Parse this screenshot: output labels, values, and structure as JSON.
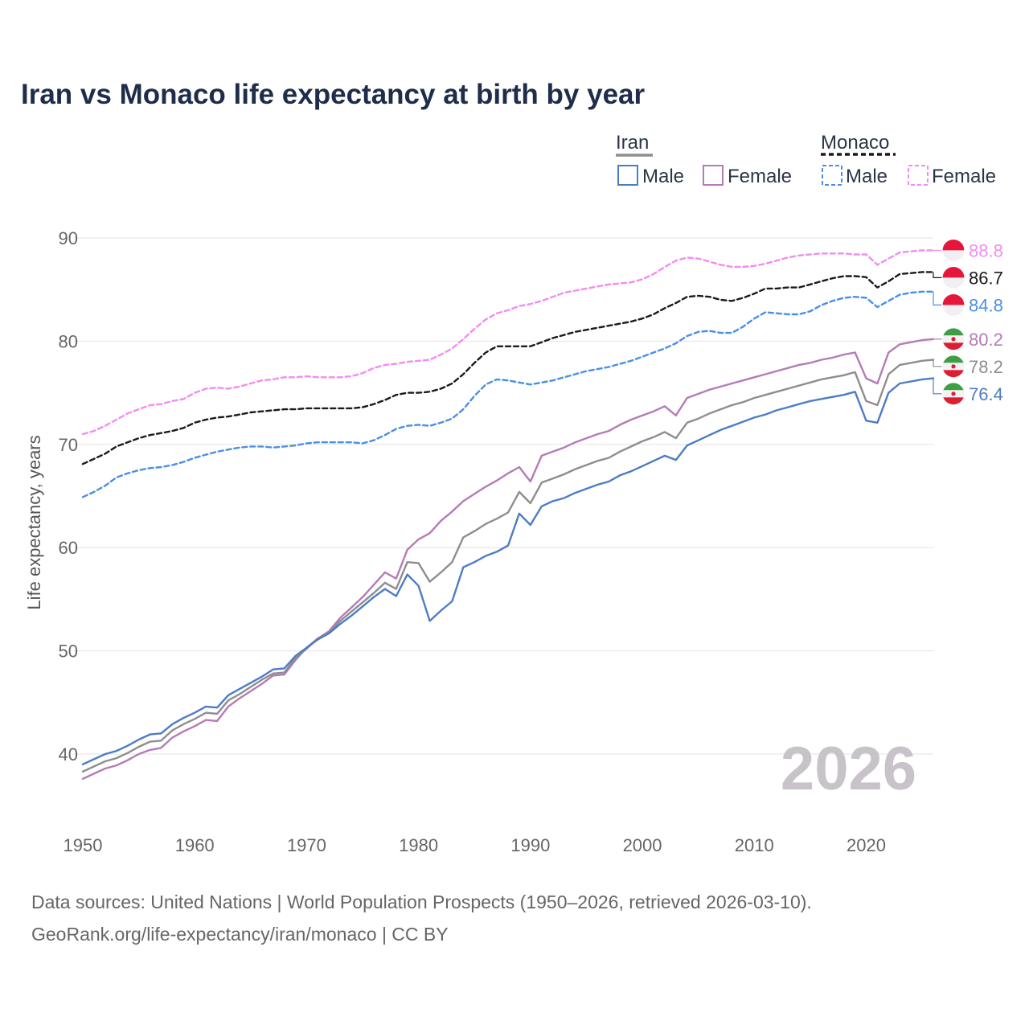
{
  "chart_data": {
    "type": "line",
    "title": "Iran vs Monaco life expectancy at birth by year",
    "xlabel": "",
    "ylabel": "Life expectancy, years",
    "xlim": [
      1950,
      2026
    ],
    "ylim": [
      34,
      93
    ],
    "x_ticks": [
      1950,
      1960,
      1970,
      1980,
      1990,
      2000,
      2010,
      2020
    ],
    "y_ticks": [
      40,
      50,
      60,
      70,
      80,
      90
    ],
    "current_year": "2026",
    "legend": {
      "groups": [
        {
          "name": "Iran",
          "color": "#8e8e8e",
          "dashed": false,
          "items": [
            {
              "label": "Male",
              "color": "#4d7cc7"
            },
            {
              "label": "Female",
              "color": "#b57bb7"
            }
          ]
        },
        {
          "name": "Monaco",
          "color": "#1a1a1a",
          "dashed": true,
          "items": [
            {
              "label": "Male",
              "color": "#4a8fe6"
            },
            {
              "label": "Female",
              "color": "#f18df0"
            }
          ]
        }
      ]
    },
    "x": [
      1950,
      1951,
      1952,
      1953,
      1954,
      1955,
      1956,
      1957,
      1958,
      1959,
      1960,
      1961,
      1962,
      1963,
      1964,
      1965,
      1966,
      1967,
      1968,
      1969,
      1970,
      1971,
      1972,
      1973,
      1974,
      1975,
      1976,
      1977,
      1978,
      1979,
      1980,
      1981,
      1982,
      1983,
      1984,
      1985,
      1986,
      1987,
      1988,
      1989,
      1990,
      1991,
      1992,
      1993,
      1994,
      1995,
      1996,
      1997,
      1998,
      1999,
      2000,
      2001,
      2002,
      2003,
      2004,
      2005,
      2006,
      2007,
      2008,
      2009,
      2010,
      2011,
      2012,
      2013,
      2014,
      2015,
      2016,
      2017,
      2018,
      2019,
      2020,
      2021,
      2022,
      2023,
      2024,
      2025,
      2026
    ],
    "series": [
      {
        "name": "Monaco Female",
        "country": "Monaco",
        "sex": "Female",
        "color": "#f18df0",
        "dashed": true,
        "end_label": "88.8",
        "values": [
          71.0,
          71.3,
          71.8,
          72.4,
          73.0,
          73.4,
          73.8,
          73.9,
          74.2,
          74.4,
          75.0,
          75.4,
          75.5,
          75.4,
          75.6,
          75.9,
          76.2,
          76.3,
          76.5,
          76.5,
          76.6,
          76.5,
          76.5,
          76.5,
          76.6,
          76.9,
          77.4,
          77.7,
          77.8,
          78.0,
          78.1,
          78.2,
          78.7,
          79.3,
          80.2,
          81.2,
          82.1,
          82.7,
          83.0,
          83.4,
          83.6,
          83.9,
          84.3,
          84.7,
          84.9,
          85.1,
          85.3,
          85.5,
          85.6,
          85.7,
          86.0,
          86.5,
          87.2,
          87.8,
          88.1,
          88.0,
          87.7,
          87.4,
          87.2,
          87.2,
          87.3,
          87.5,
          87.8,
          88.1,
          88.3,
          88.4,
          88.5,
          88.5,
          88.5,
          88.4,
          88.4,
          87.4,
          88.0,
          88.6,
          88.7,
          88.8,
          88.8
        ]
      },
      {
        "name": "Monaco",
        "country": "Monaco",
        "sex": "Total",
        "color": "#1a1a1a",
        "dashed": true,
        "end_label": "86.7",
        "values": [
          68.1,
          68.6,
          69.1,
          69.8,
          70.2,
          70.6,
          70.9,
          71.1,
          71.3,
          71.6,
          72.1,
          72.4,
          72.6,
          72.7,
          72.9,
          73.1,
          73.2,
          73.3,
          73.4,
          73.4,
          73.5,
          73.5,
          73.5,
          73.5,
          73.5,
          73.6,
          73.9,
          74.3,
          74.8,
          75.0,
          75.0,
          75.1,
          75.4,
          75.9,
          76.8,
          77.9,
          78.9,
          79.5,
          79.5,
          79.5,
          79.5,
          79.9,
          80.3,
          80.6,
          80.9,
          81.1,
          81.3,
          81.5,
          81.7,
          81.9,
          82.2,
          82.6,
          83.2,
          83.7,
          84.3,
          84.4,
          84.3,
          84.0,
          83.9,
          84.2,
          84.6,
          85.1,
          85.1,
          85.2,
          85.2,
          85.5,
          85.8,
          86.1,
          86.3,
          86.3,
          86.2,
          85.2,
          85.8,
          86.5,
          86.6,
          86.7,
          86.7
        ]
      },
      {
        "name": "Monaco Male",
        "country": "Monaco",
        "sex": "Male",
        "color": "#4a8fe6",
        "dashed": true,
        "end_label": "84.8",
        "values": [
          64.9,
          65.4,
          66.0,
          66.8,
          67.2,
          67.5,
          67.7,
          67.8,
          68.0,
          68.3,
          68.7,
          69.0,
          69.3,
          69.5,
          69.7,
          69.8,
          69.8,
          69.7,
          69.8,
          69.9,
          70.1,
          70.2,
          70.2,
          70.2,
          70.2,
          70.1,
          70.4,
          70.9,
          71.5,
          71.8,
          71.9,
          71.8,
          72.1,
          72.5,
          73.4,
          74.7,
          75.8,
          76.3,
          76.2,
          76.0,
          75.8,
          76.0,
          76.2,
          76.5,
          76.8,
          77.1,
          77.3,
          77.5,
          77.8,
          78.1,
          78.5,
          78.9,
          79.3,
          79.8,
          80.5,
          80.9,
          81.0,
          80.8,
          80.8,
          81.4,
          82.2,
          82.8,
          82.7,
          82.6,
          82.6,
          82.9,
          83.5,
          83.9,
          84.2,
          84.3,
          84.2,
          83.3,
          83.9,
          84.5,
          84.7,
          84.8,
          84.8
        ]
      },
      {
        "name": "Iran Female",
        "country": "Iran",
        "sex": "Female",
        "color": "#b57bb7",
        "dashed": false,
        "end_label": "80.2",
        "values": [
          37.6,
          38.1,
          38.6,
          38.9,
          39.4,
          40.0,
          40.4,
          40.6,
          41.6,
          42.2,
          42.7,
          43.3,
          43.2,
          44.6,
          45.4,
          46.1,
          46.8,
          47.6,
          47.7,
          49.1,
          50.3,
          51.2,
          51.9,
          53.2,
          54.2,
          55.2,
          56.4,
          57.6,
          57.0,
          59.8,
          60.8,
          61.4,
          62.6,
          63.5,
          64.5,
          65.2,
          65.9,
          66.5,
          67.2,
          67.8,
          66.4,
          68.9,
          69.3,
          69.7,
          70.2,
          70.6,
          71.0,
          71.3,
          71.9,
          72.4,
          72.8,
          73.2,
          73.7,
          72.8,
          74.5,
          74.9,
          75.3,
          75.6,
          75.9,
          76.2,
          76.5,
          76.8,
          77.1,
          77.4,
          77.7,
          77.9,
          78.2,
          78.4,
          78.7,
          78.9,
          76.4,
          75.9,
          78.9,
          79.7,
          79.9,
          80.1,
          80.2
        ]
      },
      {
        "name": "Iran",
        "country": "Iran",
        "sex": "Total",
        "color": "#8e8e8e",
        "dashed": false,
        "end_label": "78.2",
        "values": [
          38.3,
          38.8,
          39.3,
          39.6,
          40.1,
          40.7,
          41.2,
          41.3,
          42.3,
          42.9,
          43.4,
          44.0,
          43.9,
          45.2,
          45.8,
          46.5,
          47.2,
          47.8,
          47.9,
          49.3,
          50.2,
          51.2,
          51.8,
          52.9,
          53.8,
          54.7,
          55.6,
          56.6,
          56.0,
          58.6,
          58.5,
          56.7,
          57.6,
          58.6,
          61.0,
          61.6,
          62.3,
          62.8,
          63.4,
          65.4,
          64.3,
          66.3,
          66.7,
          67.1,
          67.6,
          68.0,
          68.4,
          68.7,
          69.3,
          69.8,
          70.3,
          70.7,
          71.2,
          70.6,
          72.1,
          72.5,
          73.0,
          73.4,
          73.8,
          74.1,
          74.5,
          74.8,
          75.1,
          75.4,
          75.7,
          76.0,
          76.3,
          76.5,
          76.7,
          77.0,
          74.2,
          73.8,
          76.8,
          77.7,
          77.9,
          78.1,
          78.2
        ]
      },
      {
        "name": "Iran Male",
        "country": "Iran",
        "sex": "Male",
        "color": "#4d7cc7",
        "dashed": false,
        "end_label": "76.4",
        "values": [
          39.0,
          39.5,
          40.0,
          40.3,
          40.8,
          41.4,
          41.9,
          42.0,
          42.9,
          43.5,
          44.0,
          44.6,
          44.5,
          45.7,
          46.3,
          46.9,
          47.5,
          48.2,
          48.3,
          49.5,
          50.3,
          51.1,
          51.7,
          52.6,
          53.4,
          54.3,
          55.2,
          56.0,
          55.3,
          57.4,
          56.3,
          52.9,
          53.9,
          54.8,
          58.1,
          58.6,
          59.2,
          59.6,
          60.2,
          63.3,
          62.2,
          64.0,
          64.5,
          64.8,
          65.3,
          65.7,
          66.1,
          66.4,
          67.0,
          67.4,
          67.9,
          68.4,
          68.9,
          68.5,
          69.9,
          70.4,
          70.9,
          71.4,
          71.8,
          72.2,
          72.6,
          72.9,
          73.3,
          73.6,
          73.9,
          74.2,
          74.4,
          74.6,
          74.8,
          75.1,
          72.3,
          72.1,
          75.0,
          75.9,
          76.1,
          76.3,
          76.4
        ]
      }
    ]
  },
  "source": {
    "line1": "Data sources: United Nations | World Population Prospects (1950–2026, retrieved 2026-03-10).",
    "line2": "GeoRank.org/life-expectancy/iran/monaco | CC BY"
  }
}
